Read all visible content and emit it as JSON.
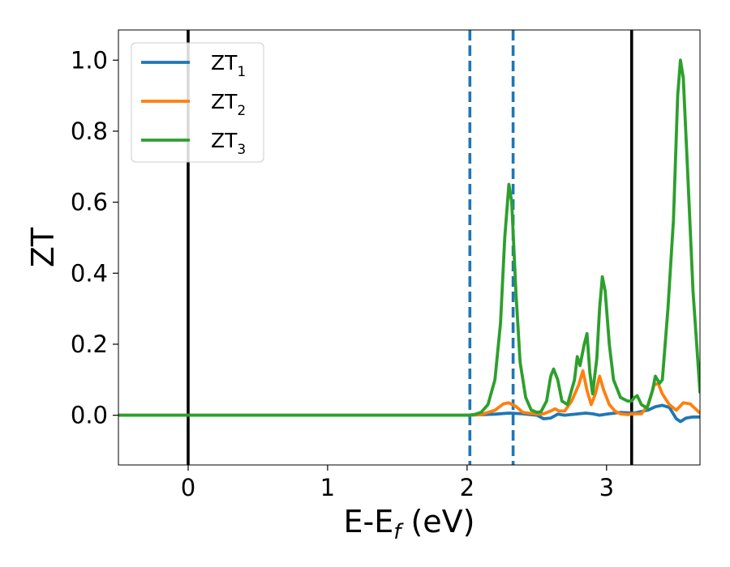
{
  "chart_data": {
    "type": "line",
    "title": "",
    "xlabel": "E-E",
    "xlabel_sub": "f",
    "xlabel_unit": " (eV)",
    "ylabel": "ZT",
    "xlim": [
      -0.5,
      3.67
    ],
    "ylim": [
      -0.14,
      1.085
    ],
    "xticks": [
      0,
      1,
      2,
      3
    ],
    "xtick_labels": [
      "0",
      "1",
      "2",
      "3"
    ],
    "yticks": [
      0.0,
      0.2,
      0.4,
      0.6,
      0.8,
      1.0
    ],
    "ytick_labels": [
      "0.0",
      "0.2",
      "0.4",
      "0.6",
      "0.8",
      "1.0"
    ],
    "grid": false,
    "legend_position": "top-left",
    "vlines": [
      {
        "x": 0.0,
        "style": "solid",
        "color": "#000000"
      },
      {
        "x": 3.18,
        "style": "solid",
        "color": "#000000"
      },
      {
        "x": 2.02,
        "style": "dashed",
        "color": "#1f77b4"
      },
      {
        "x": 2.33,
        "style": "dashed",
        "color": "#1f77b4"
      }
    ],
    "series": [
      {
        "name": "ZT",
        "sub": "1",
        "color": "#1f77b4",
        "points": [
          [
            -0.5,
            0
          ],
          [
            2.0,
            0
          ],
          [
            2.2,
            0.003
          ],
          [
            2.3,
            0.006
          ],
          [
            2.4,
            0.004
          ],
          [
            2.5,
            0.0
          ],
          [
            2.55,
            -0.01
          ],
          [
            2.6,
            -0.008
          ],
          [
            2.65,
            0.003
          ],
          [
            2.7,
            0.0
          ],
          [
            2.8,
            0.004
          ],
          [
            2.85,
            0.006
          ],
          [
            2.9,
            0.004
          ],
          [
            2.95,
            0.0
          ],
          [
            3.0,
            0.003
          ],
          [
            3.1,
            0.008
          ],
          [
            3.2,
            0.006
          ],
          [
            3.3,
            0.015
          ],
          [
            3.35,
            0.024
          ],
          [
            3.4,
            0.028
          ],
          [
            3.45,
            0.022
          ],
          [
            3.5,
            -0.01
          ],
          [
            3.53,
            -0.018
          ],
          [
            3.57,
            -0.008
          ],
          [
            3.62,
            -0.005
          ],
          [
            3.67,
            -0.005
          ]
        ]
      },
      {
        "name": "ZT",
        "sub": "2",
        "color": "#ff7f0e",
        "points": [
          [
            -0.5,
            0
          ],
          [
            2.0,
            0
          ],
          [
            2.1,
            0.002
          ],
          [
            2.2,
            0.014
          ],
          [
            2.26,
            0.032
          ],
          [
            2.3,
            0.035
          ],
          [
            2.35,
            0.025
          ],
          [
            2.4,
            0.008
          ],
          [
            2.5,
            0.003
          ],
          [
            2.55,
            0.004
          ],
          [
            2.6,
            0.012
          ],
          [
            2.63,
            0.018
          ],
          [
            2.66,
            0.012
          ],
          [
            2.7,
            0.012
          ],
          [
            2.75,
            0.04
          ],
          [
            2.8,
            0.085
          ],
          [
            2.83,
            0.125
          ],
          [
            2.86,
            0.07
          ],
          [
            2.89,
            0.03
          ],
          [
            2.92,
            0.06
          ],
          [
            2.95,
            0.11
          ],
          [
            2.98,
            0.07
          ],
          [
            3.02,
            0.03
          ],
          [
            3.06,
            0.012
          ],
          [
            3.1,
            0.004
          ],
          [
            3.15,
            0.002
          ],
          [
            3.2,
            0.004
          ],
          [
            3.25,
            0.004
          ],
          [
            3.3,
            0.03
          ],
          [
            3.34,
            0.085
          ],
          [
            3.37,
            0.09
          ],
          [
            3.4,
            0.06
          ],
          [
            3.45,
            0.03
          ],
          [
            3.5,
            0.014
          ],
          [
            3.55,
            0.035
          ],
          [
            3.6,
            0.032
          ],
          [
            3.67,
            0.006
          ]
        ]
      },
      {
        "name": "ZT",
        "sub": "3",
        "color": "#2ca02c",
        "points": [
          [
            -0.5,
            0
          ],
          [
            2.0,
            0
          ],
          [
            2.05,
            0.002
          ],
          [
            2.1,
            0.008
          ],
          [
            2.15,
            0.03
          ],
          [
            2.2,
            0.1
          ],
          [
            2.24,
            0.26
          ],
          [
            2.27,
            0.5
          ],
          [
            2.3,
            0.65
          ],
          [
            2.32,
            0.6
          ],
          [
            2.35,
            0.35
          ],
          [
            2.38,
            0.15
          ],
          [
            2.42,
            0.05
          ],
          [
            2.46,
            0.015
          ],
          [
            2.5,
            0.008
          ],
          [
            2.53,
            0.01
          ],
          [
            2.57,
            0.04
          ],
          [
            2.6,
            0.11
          ],
          [
            2.62,
            0.13
          ],
          [
            2.65,
            0.1
          ],
          [
            2.68,
            0.04
          ],
          [
            2.72,
            0.03
          ],
          [
            2.77,
            0.1
          ],
          [
            2.79,
            0.165
          ],
          [
            2.81,
            0.14
          ],
          [
            2.84,
            0.2
          ],
          [
            2.86,
            0.23
          ],
          [
            2.88,
            0.12
          ],
          [
            2.9,
            0.06
          ],
          [
            2.93,
            0.16
          ],
          [
            2.95,
            0.3
          ],
          [
            2.97,
            0.39
          ],
          [
            2.99,
            0.35
          ],
          [
            3.02,
            0.2
          ],
          [
            3.05,
            0.1
          ],
          [
            3.1,
            0.05
          ],
          [
            3.15,
            0.04
          ],
          [
            3.18,
            0.04
          ],
          [
            3.2,
            0.05
          ],
          [
            3.22,
            0.055
          ],
          [
            3.25,
            0.03
          ],
          [
            3.29,
            0.02
          ],
          [
            3.33,
            0.07
          ],
          [
            3.35,
            0.11
          ],
          [
            3.38,
            0.09
          ],
          [
            3.4,
            0.1
          ],
          [
            3.44,
            0.3
          ],
          [
            3.48,
            0.55
          ],
          [
            3.51,
            0.9
          ],
          [
            3.53,
            1.0
          ],
          [
            3.55,
            0.95
          ],
          [
            3.58,
            0.7
          ],
          [
            3.62,
            0.35
          ],
          [
            3.67,
            0.065
          ]
        ]
      }
    ]
  }
}
